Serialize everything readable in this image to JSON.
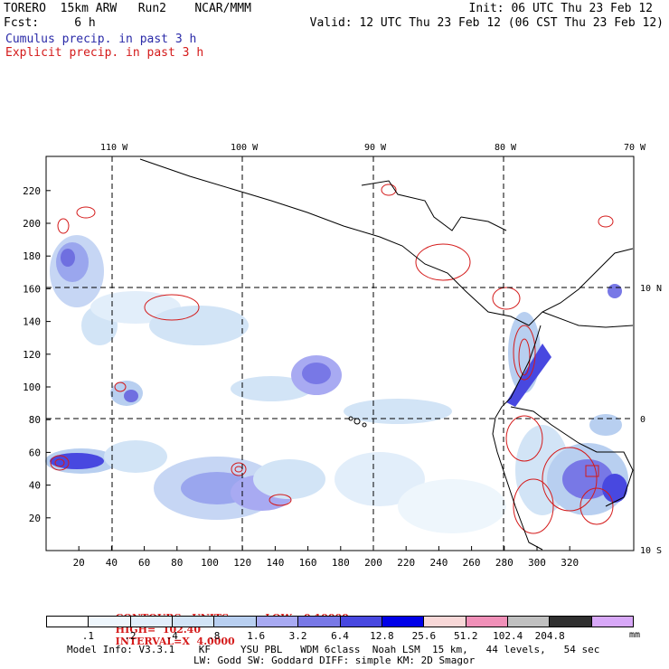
{
  "header": {
    "title_left": "TORERO  15km ARW   Run2    NCAR/MMM",
    "fcst": "Fcst:     6 h",
    "init": "Init: 06 UTC Thu 23 Feb 12",
    "valid": "Valid: 12 UTC Thu 23 Feb 12 (06 CST Thu 23 Feb 12)",
    "cumulus_label": "Cumulus precip. in past 3 h",
    "explicit_label": "Explicit precip. in past 3 h"
  },
  "map": {
    "longitude_labels": [
      "110 W",
      "100 W",
      "90 W",
      "80 W",
      "70 W"
    ],
    "latitude_labels": [
      "10 N",
      "0",
      "10 S"
    ],
    "x_ticks": [
      "20",
      "40",
      "60",
      "80",
      "100",
      "120",
      "140",
      "160",
      "180",
      "200",
      "220",
      "240",
      "260",
      "280",
      "300",
      "320"
    ],
    "y_ticks": [
      "20",
      "40",
      "60",
      "80",
      "100",
      "120",
      "140",
      "160",
      "180",
      "200",
      "220"
    ]
  },
  "contours": {
    "units": "CONTOURS:  UNITS=mm  LOW= 0.10000",
    "high": "HIGH=  102.40",
    "interval": "INTERVAL=X  4.0000"
  },
  "colorbar": {
    "colors": [
      "#ffffff",
      "#eef6fc",
      "#e2eefa",
      "#d2e4f6",
      "#b8cff0",
      "#a8aaf2",
      "#7878e6",
      "#4848e0",
      "#0000e8",
      "#f8d8d8",
      "#f090b8",
      "#c0c0c0",
      "#303030",
      "#d8a8f8"
    ],
    "labels": [
      ".1",
      ".2",
      ".4",
      ".8",
      "1.6",
      "3.2",
      "6.4",
      "12.8",
      "25.6",
      "51.2",
      "102.4",
      "204.8"
    ],
    "units": "mm"
  },
  "footer": {
    "line1": "Model Info: V3.3.1    KF     YSU PBL   WDM 6class  Noah LSM  15 km,   44 levels,   54 sec",
    "line2": "LW: Godd SW: Goddard DIFF: simple KM: 2D Smagor"
  },
  "colors": {
    "cumulus": "#2a2aa8",
    "explicit": "#d41a1a"
  }
}
